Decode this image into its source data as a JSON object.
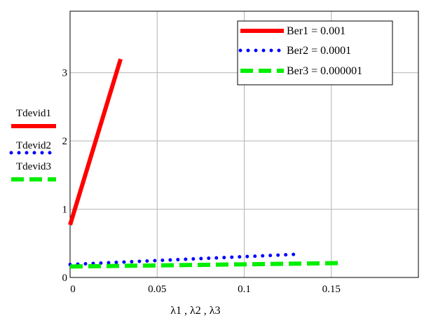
{
  "chart_data": {
    "type": "line",
    "xlabel": "λ1 , λ2 , λ3",
    "ylabel_items": [
      "Tdevid1",
      "Tdevid2",
      "Tdevid3"
    ],
    "xlim": [
      0,
      0.2
    ],
    "ylim": [
      0,
      3.9
    ],
    "x_ticks": [
      "0",
      "0.05",
      "0.1",
      "0.15"
    ],
    "y_ticks": [
      "0",
      "1",
      "2",
      "3"
    ],
    "x_tick_values": [
      0,
      0.05,
      0.1,
      0.15
    ],
    "y_tick_values": [
      0,
      1,
      2,
      3
    ],
    "grid": true,
    "legend_position": "top-right",
    "series": [
      {
        "name": "Ber1 = 0.001",
        "ylabel": "Tdevid1",
        "color": "#ff0000",
        "style": "solid",
        "x": [
          0,
          0.029
        ],
        "y": [
          0.77,
          3.2
        ]
      },
      {
        "name": "Ber2 = 0.0001",
        "ylabel": "Tdevid2",
        "color": "#0000ff",
        "style": "dotted",
        "x": [
          0,
          0.13
        ],
        "y": [
          0.19,
          0.34
        ]
      },
      {
        "name": "Ber3 = 0.000001",
        "ylabel": "Tdevid3",
        "color": "#00ee00",
        "style": "dashed",
        "x": [
          0,
          0.155
        ],
        "y": [
          0.16,
          0.21
        ]
      }
    ]
  }
}
